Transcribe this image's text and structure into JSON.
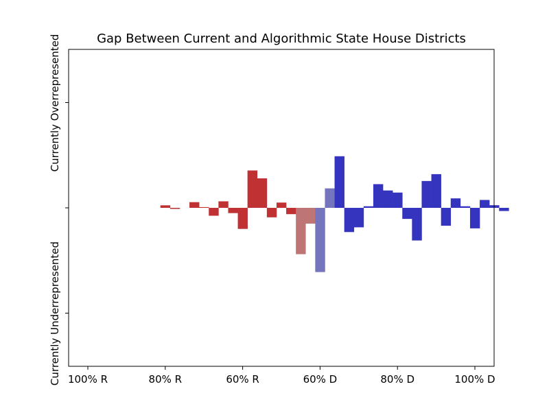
{
  "chart_data": {
    "type": "bar",
    "title": "Gap Between Current and Algorithmic State House Districts",
    "ylabel_top": "Currently Overrepresented",
    "ylabel_bottom": "Currently Underrepresented",
    "xlabel": "",
    "x_axis": "two-party vote share, from 100% Republican (left) to 100% Democratic (right)",
    "xlim": [
      0,
      1
    ],
    "ylim": [
      -1.5,
      1.5
    ],
    "xticks": [
      {
        "value": 0.0,
        "label": "100% R"
      },
      {
        "value": 0.2,
        "label": "80% R"
      },
      {
        "value": 0.4,
        "label": "60% R"
      },
      {
        "value": 0.6,
        "label": "60% D"
      },
      {
        "value": 0.8,
        "label": "80% D"
      },
      {
        "value": 1.0,
        "label": "100% D"
      }
    ],
    "ytick_values": [
      -1,
      0,
      1
    ],
    "grid": false,
    "legend": "none",
    "colors": {
      "republican": "#bf3133",
      "republican_light": "#be7575",
      "democratic": "#3534bf",
      "democratic_light": "#7575be"
    },
    "bin_width": 0.025,
    "bars": [
      {
        "x": 0.2,
        "value": 0.024,
        "party": "republican"
      },
      {
        "x": 0.225,
        "value": -0.01,
        "party": "republican"
      },
      {
        "x": 0.275,
        "value": 0.054,
        "party": "republican"
      },
      {
        "x": 0.3,
        "value": 0.007,
        "party": "republican"
      },
      {
        "x": 0.325,
        "value": -0.075,
        "party": "republican"
      },
      {
        "x": 0.35,
        "value": 0.062,
        "party": "republican"
      },
      {
        "x": 0.375,
        "value": -0.05,
        "party": "republican"
      },
      {
        "x": 0.4,
        "value": -0.2,
        "party": "republican"
      },
      {
        "x": 0.425,
        "value": 0.355,
        "party": "republican"
      },
      {
        "x": 0.45,
        "value": 0.28,
        "party": "republican"
      },
      {
        "x": 0.475,
        "value": -0.09,
        "party": "republican"
      },
      {
        "x": 0.5,
        "value": 0.05,
        "party": "republican"
      },
      {
        "x": 0.525,
        "value": -0.06,
        "party": "republican"
      },
      {
        "x": 0.55,
        "value": -0.44,
        "party": "republican_light"
      },
      {
        "x": 0.575,
        "value": -0.15,
        "party": "republican_light"
      },
      {
        "x": 0.6,
        "value": -0.61,
        "party": "democratic_light"
      },
      {
        "x": 0.625,
        "value": 0.185,
        "party": "democratic_light"
      },
      {
        "x": 0.65,
        "value": 0.49,
        "party": "democratic"
      },
      {
        "x": 0.675,
        "value": -0.23,
        "party": "democratic"
      },
      {
        "x": 0.7,
        "value": -0.185,
        "party": "democratic"
      },
      {
        "x": 0.725,
        "value": 0.015,
        "party": "democratic"
      },
      {
        "x": 0.75,
        "value": 0.225,
        "party": "democratic"
      },
      {
        "x": 0.775,
        "value": 0.165,
        "party": "democratic"
      },
      {
        "x": 0.8,
        "value": 0.145,
        "party": "democratic"
      },
      {
        "x": 0.825,
        "value": -0.105,
        "party": "democratic"
      },
      {
        "x": 0.85,
        "value": -0.31,
        "party": "democratic"
      },
      {
        "x": 0.875,
        "value": 0.255,
        "party": "democratic"
      },
      {
        "x": 0.9,
        "value": 0.32,
        "party": "democratic"
      },
      {
        "x": 0.925,
        "value": -0.17,
        "party": "democratic"
      },
      {
        "x": 0.95,
        "value": 0.09,
        "party": "democratic"
      },
      {
        "x": 0.975,
        "value": 0.015,
        "party": "democratic"
      },
      {
        "x": 1.0,
        "value": -0.195,
        "party": "democratic"
      },
      {
        "x": 1.025,
        "value": 0.075,
        "party": "democratic"
      },
      {
        "x": 1.05,
        "value": 0.025,
        "party": "democratic"
      },
      {
        "x": 1.075,
        "value": -0.03,
        "party": "democratic"
      }
    ]
  }
}
